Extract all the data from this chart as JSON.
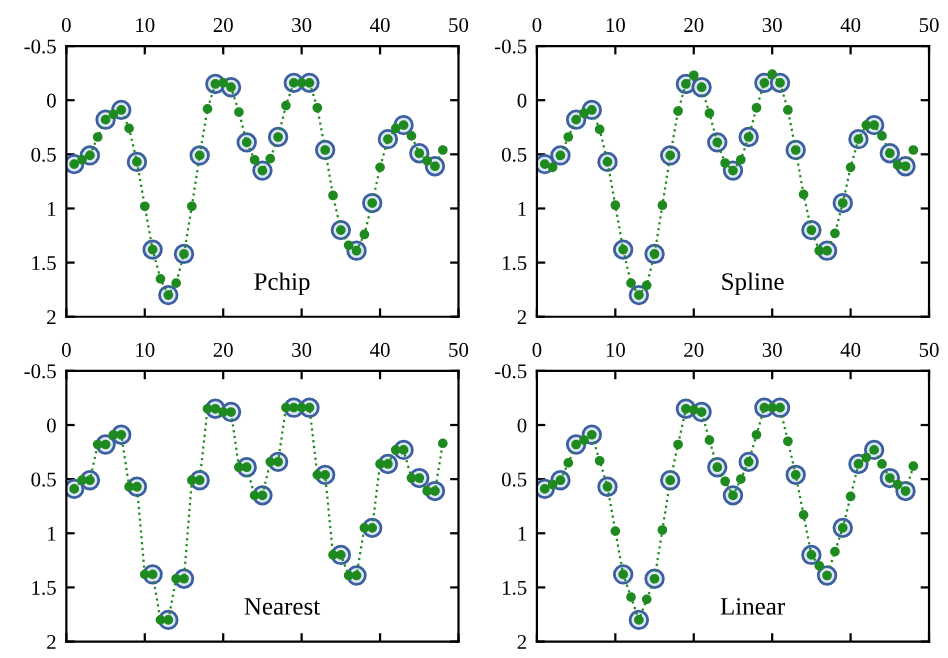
{
  "chart_data": [
    {
      "type": "line",
      "annotations": [
        "Pchip"
      ],
      "xlim": [
        0,
        50
      ],
      "ylim": [
        2,
        -0.5
      ],
      "xticks": [
        0,
        10,
        20,
        30,
        40,
        50
      ],
      "yticks": [
        -0.5,
        0,
        0.5,
        1,
        1.5,
        2
      ],
      "line_style": "dotted",
      "series": [
        {
          "type": "line",
          "color": "#1f8a1f",
          "marker": "circle",
          "x": [
            1,
            2,
            3,
            4,
            5,
            6,
            7,
            8,
            9,
            10,
            11,
            12,
            13,
            14,
            15,
            16,
            17,
            18,
            19,
            20,
            21,
            22,
            23,
            24,
            25,
            26,
            27,
            28,
            29,
            30,
            31,
            32,
            33,
            34,
            35,
            36,
            37,
            38,
            39,
            40,
            41,
            42,
            43,
            44,
            45,
            46,
            47,
            48
          ],
          "values": [
            0.59,
            0.55,
            0.51,
            0.34,
            0.18,
            0.13,
            0.09,
            0.26,
            0.57,
            0.98,
            1.38,
            1.65,
            1.8,
            1.69,
            1.42,
            0.98,
            0.51,
            0.08,
            -0.15,
            -0.16,
            -0.12,
            0.11,
            0.39,
            0.55,
            0.65,
            0.54,
            0.34,
            0.05,
            -0.16,
            -0.16,
            -0.16,
            0.07,
            0.46,
            0.88,
            1.2,
            1.34,
            1.39,
            1.24,
            0.95,
            0.62,
            0.36,
            0.26,
            0.23,
            0.33,
            0.49,
            0.56,
            0.61,
            0.46
          ]
        },
        {
          "type": "scatter",
          "color": "#3c5fa0",
          "marker": "circle",
          "x": [
            1,
            3,
            5,
            7,
            9,
            11,
            13,
            15,
            17,
            19,
            21,
            23,
            25,
            27,
            29,
            31,
            33,
            35,
            37,
            39,
            41,
            43,
            45,
            47
          ],
          "values": [
            0.59,
            0.51,
            0.18,
            0.09,
            0.57,
            1.38,
            1.8,
            1.42,
            0.51,
            -0.15,
            -0.12,
            0.39,
            0.65,
            0.34,
            -0.16,
            -0.16,
            0.46,
            1.2,
            1.39,
            0.95,
            0.36,
            0.23,
            0.49,
            0.61
          ]
        }
      ]
    },
    {
      "type": "line",
      "annotations": [
        "Spline"
      ],
      "xlim": [
        0,
        50
      ],
      "ylim": [
        2,
        -0.5
      ],
      "xticks": [
        0,
        10,
        20,
        30,
        40,
        50
      ],
      "yticks": [
        -0.5,
        0,
        0.5,
        1,
        1.5,
        2
      ],
      "line_style": "dotted",
      "series": [
        {
          "type": "line",
          "color": "#1f8a1f",
          "marker": "circle",
          "x": [
            1,
            2,
            3,
            4,
            5,
            6,
            7,
            8,
            9,
            10,
            11,
            12,
            13,
            14,
            15,
            16,
            17,
            18,
            19,
            20,
            21,
            22,
            23,
            24,
            25,
            26,
            27,
            28,
            29,
            30,
            31,
            32,
            33,
            34,
            35,
            36,
            37,
            38,
            39,
            40,
            41,
            42,
            43,
            44,
            45,
            46,
            47,
            48
          ],
          "values": [
            0.59,
            0.62,
            0.51,
            0.34,
            0.18,
            0.12,
            0.09,
            0.27,
            0.57,
            0.97,
            1.38,
            1.69,
            1.8,
            1.71,
            1.42,
            0.97,
            0.51,
            0.1,
            -0.15,
            -0.23,
            -0.12,
            0.12,
            0.39,
            0.58,
            0.65,
            0.55,
            0.34,
            0.07,
            -0.16,
            -0.24,
            -0.16,
            0.09,
            0.46,
            0.87,
            1.2,
            1.39,
            1.39,
            1.23,
            0.95,
            0.62,
            0.36,
            0.23,
            0.23,
            0.33,
            0.49,
            0.6,
            0.61,
            0.46
          ]
        },
        {
          "type": "scatter",
          "color": "#3c5fa0",
          "marker": "circle",
          "x": [
            1,
            3,
            5,
            7,
            9,
            11,
            13,
            15,
            17,
            19,
            21,
            23,
            25,
            27,
            29,
            31,
            33,
            35,
            37,
            39,
            41,
            43,
            45,
            47
          ],
          "values": [
            0.59,
            0.51,
            0.18,
            0.09,
            0.57,
            1.38,
            1.8,
            1.42,
            0.51,
            -0.15,
            -0.12,
            0.39,
            0.65,
            0.34,
            -0.16,
            -0.16,
            0.46,
            1.2,
            1.39,
            0.95,
            0.36,
            0.23,
            0.49,
            0.61
          ]
        }
      ]
    },
    {
      "type": "line",
      "annotations": [
        "Nearest"
      ],
      "xlim": [
        0,
        50
      ],
      "ylim": [
        2,
        -0.5
      ],
      "xticks": [
        0,
        10,
        20,
        30,
        40,
        50
      ],
      "yticks": [
        -0.5,
        0,
        0.5,
        1,
        1.5,
        2
      ],
      "line_style": "dotted",
      "series": [
        {
          "type": "line",
          "color": "#1f8a1f",
          "marker": "circle",
          "x": [
            1,
            2,
            3,
            4,
            5,
            6,
            7,
            8,
            9,
            10,
            11,
            12,
            13,
            14,
            15,
            16,
            17,
            18,
            19,
            20,
            21,
            22,
            23,
            24,
            25,
            26,
            27,
            28,
            29,
            30,
            31,
            32,
            33,
            34,
            35,
            36,
            37,
            38,
            39,
            40,
            41,
            42,
            43,
            44,
            45,
            46,
            47,
            48
          ],
          "values": [
            0.59,
            0.51,
            0.51,
            0.18,
            0.18,
            0.09,
            0.09,
            0.57,
            0.57,
            1.38,
            1.38,
            1.8,
            1.8,
            1.42,
            1.42,
            0.51,
            0.51,
            -0.15,
            -0.15,
            -0.12,
            -0.12,
            0.39,
            0.39,
            0.65,
            0.65,
            0.34,
            0.34,
            -0.16,
            -0.16,
            -0.16,
            -0.16,
            0.46,
            0.46,
            1.2,
            1.2,
            1.39,
            1.39,
            0.95,
            0.95,
            0.36,
            0.36,
            0.23,
            0.23,
            0.49,
            0.49,
            0.61,
            0.61,
            0.17
          ]
        },
        {
          "type": "scatter",
          "color": "#3c5fa0",
          "marker": "circle",
          "x": [
            1,
            3,
            5,
            7,
            9,
            11,
            13,
            15,
            17,
            19,
            21,
            23,
            25,
            27,
            29,
            31,
            33,
            35,
            37,
            39,
            41,
            43,
            45,
            47
          ],
          "values": [
            0.59,
            0.51,
            0.18,
            0.09,
            0.57,
            1.38,
            1.8,
            1.42,
            0.51,
            -0.15,
            -0.12,
            0.39,
            0.65,
            0.34,
            -0.16,
            -0.16,
            0.46,
            1.2,
            1.39,
            0.95,
            0.36,
            0.23,
            0.49,
            0.61
          ]
        }
      ]
    },
    {
      "type": "line",
      "annotations": [
        "Linear"
      ],
      "xlim": [
        0,
        50
      ],
      "ylim": [
        2,
        -0.5
      ],
      "xticks": [
        0,
        10,
        20,
        30,
        40,
        50
      ],
      "yticks": [
        -0.5,
        0,
        0.5,
        1,
        1.5,
        2
      ],
      "line_style": "dotted",
      "series": [
        {
          "type": "line",
          "color": "#1f8a1f",
          "marker": "circle",
          "x": [
            1,
            2,
            3,
            4,
            5,
            6,
            7,
            8,
            9,
            10,
            11,
            12,
            13,
            14,
            15,
            16,
            17,
            18,
            19,
            20,
            21,
            22,
            23,
            24,
            25,
            26,
            27,
            28,
            29,
            30,
            31,
            32,
            33,
            34,
            35,
            36,
            37,
            38,
            39,
            40,
            41,
            42,
            43,
            44,
            45,
            46,
            47,
            48
          ],
          "values": [
            0.59,
            0.55,
            0.51,
            0.35,
            0.18,
            0.14,
            0.09,
            0.33,
            0.57,
            0.98,
            1.38,
            1.59,
            1.8,
            1.61,
            1.42,
            0.97,
            0.51,
            0.18,
            -0.15,
            -0.14,
            -0.12,
            0.14,
            0.39,
            0.52,
            0.65,
            0.5,
            0.34,
            0.09,
            -0.16,
            -0.16,
            -0.16,
            0.15,
            0.46,
            0.83,
            1.2,
            1.3,
            1.39,
            1.17,
            0.95,
            0.66,
            0.36,
            0.3,
            0.23,
            0.36,
            0.49,
            0.55,
            0.61,
            0.38
          ]
        },
        {
          "type": "scatter",
          "color": "#3c5fa0",
          "marker": "circle",
          "x": [
            1,
            3,
            5,
            7,
            9,
            11,
            13,
            15,
            17,
            19,
            21,
            23,
            25,
            27,
            29,
            31,
            33,
            35,
            37,
            39,
            41,
            43,
            45,
            47
          ],
          "values": [
            0.59,
            0.51,
            0.18,
            0.09,
            0.57,
            1.38,
            1.8,
            1.42,
            0.51,
            -0.15,
            -0.12,
            0.39,
            0.65,
            0.34,
            -0.16,
            -0.16,
            0.46,
            1.2,
            1.39,
            0.95,
            0.36,
            0.23,
            0.49,
            0.61
          ]
        }
      ]
    }
  ]
}
